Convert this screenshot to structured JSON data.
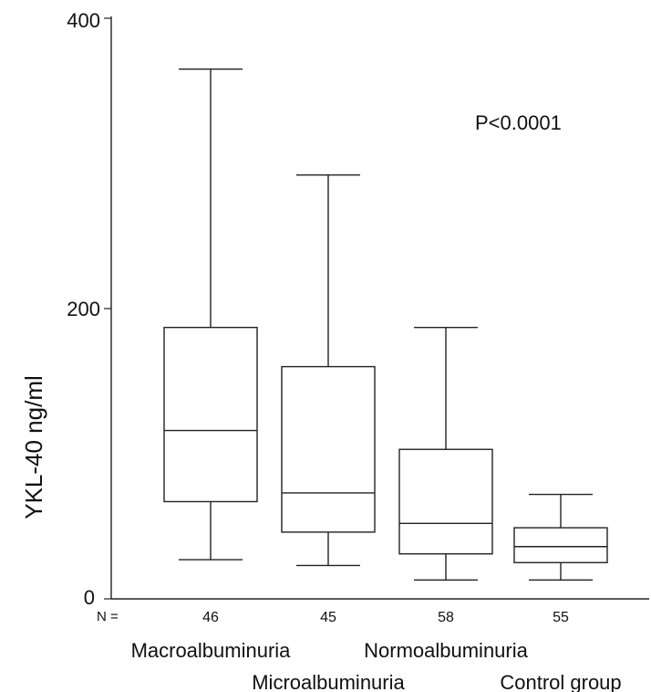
{
  "chart_data": {
    "type": "box",
    "ylabel": "YKL-40 ng/ml",
    "ylim": [
      0,
      400
    ],
    "yticks": [
      "0",
      "200",
      "400"
    ],
    "annotation": "P<0.0001",
    "n_prefix": "N =",
    "grid": false,
    "categories": [
      "Macroalbuminuria",
      "Microalbuminuria",
      "Normoalbuminuria",
      "Control group"
    ],
    "n": [
      "46",
      "45",
      "58",
      "55"
    ],
    "boxes": [
      {
        "min": 27,
        "q1": 67,
        "median": 116,
        "q3": 187,
        "max": 365
      },
      {
        "min": 23,
        "q1": 46,
        "median": 73,
        "q3": 160,
        "max": 292
      },
      {
        "min": 13,
        "q1": 31,
        "median": 52,
        "q3": 103,
        "max": 187
      },
      {
        "min": 13,
        "q1": 25,
        "median": 36,
        "q3": 49,
        "max": 72
      }
    ]
  }
}
